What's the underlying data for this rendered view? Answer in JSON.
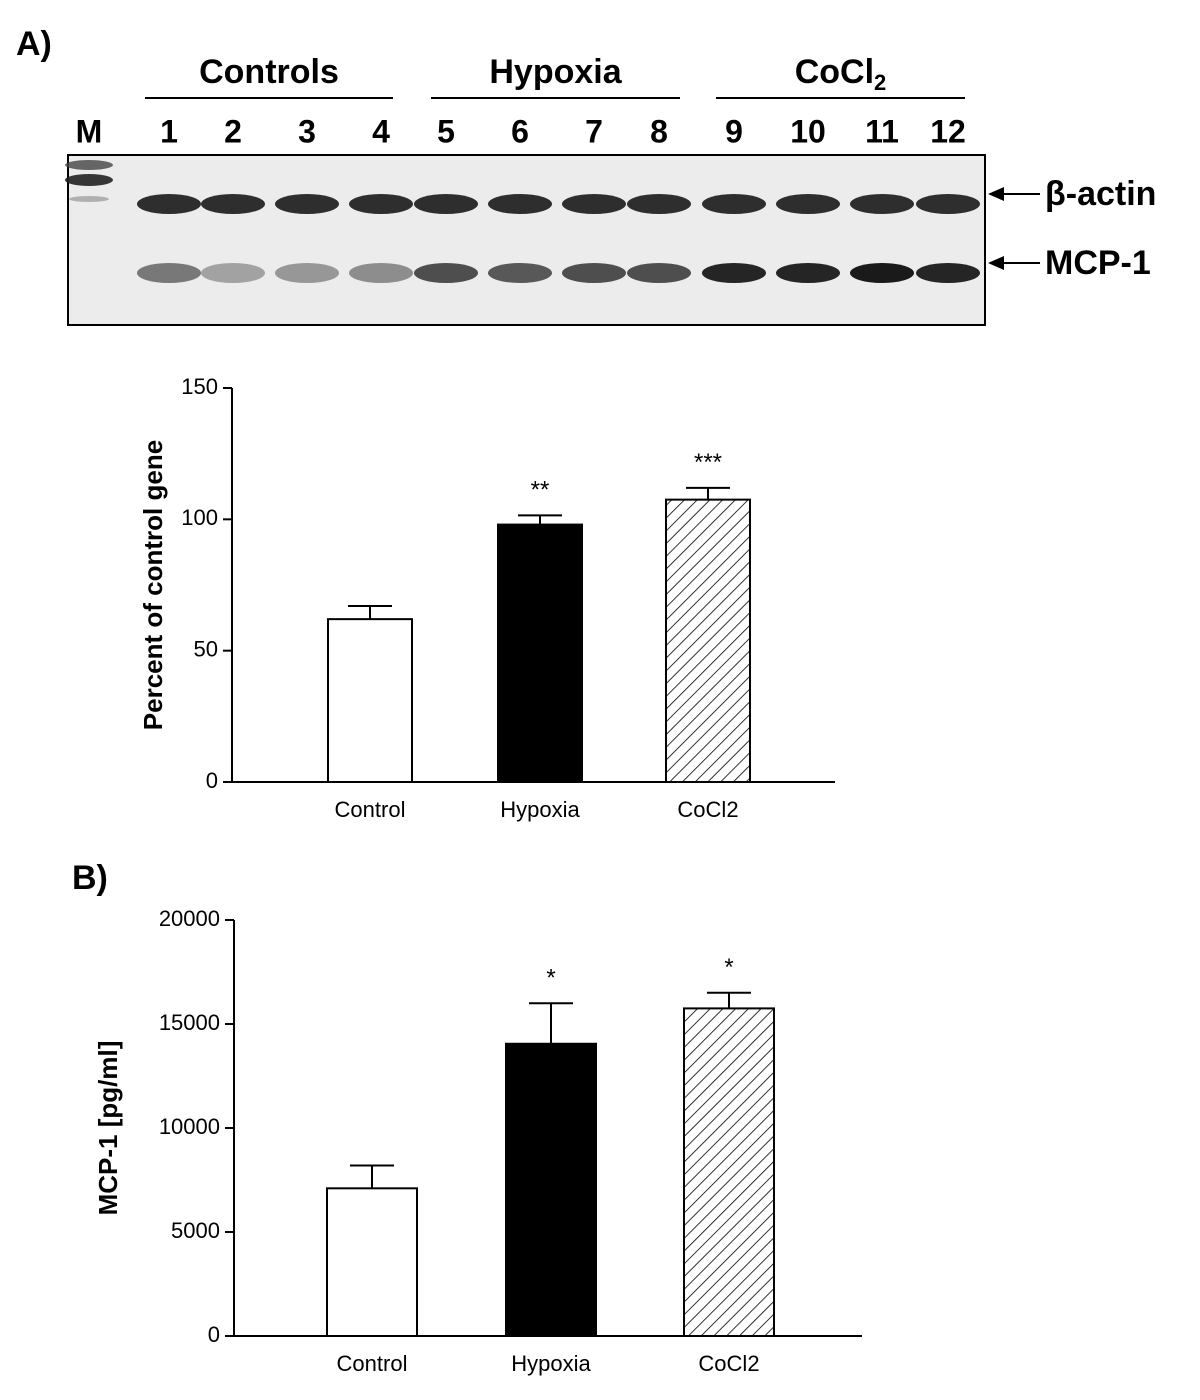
{
  "panels": [
    "A)",
    "B)"
  ],
  "gel": {
    "groups": [
      {
        "name": "Controls"
      },
      {
        "name": "Hypoxia"
      },
      {
        "name": "CoCl",
        "subscript": "2"
      }
    ],
    "lanes": [
      "M",
      "1",
      "2",
      "3",
      "4",
      "5",
      "6",
      "7",
      "8",
      "9",
      "10",
      "11",
      "12"
    ],
    "bands": [
      "β-actin",
      "MCP-1"
    ]
  },
  "chart_data": [
    {
      "type": "bar",
      "y_label": "Percent of control gene",
      "categories": [
        "Control",
        "Hypoxia",
        "CoCl2"
      ],
      "values": [
        62,
        98,
        107.5
      ],
      "errors": [
        5,
        3.5,
        4.5
      ],
      "annotations": [
        null,
        "**",
        "***"
      ],
      "fills": [
        "#ffffff",
        "#000000",
        "hatch"
      ],
      "ylim": [
        0,
        150
      ],
      "yticks": [
        0,
        50,
        100,
        150
      ]
    },
    {
      "type": "bar",
      "y_label": "MCP-1 [pg/ml]",
      "categories": [
        "Control",
        "Hypoxia",
        "CoCl2"
      ],
      "values": [
        7100,
        14050,
        15750
      ],
      "errors": [
        1100,
        1950,
        750
      ],
      "annotations": [
        null,
        "*",
        "*"
      ],
      "fills": [
        "#ffffff",
        "#000000",
        "hatch"
      ],
      "ylim": [
        0,
        20000
      ],
      "yticks": [
        0,
        5000,
        10000,
        15000,
        20000
      ]
    }
  ]
}
